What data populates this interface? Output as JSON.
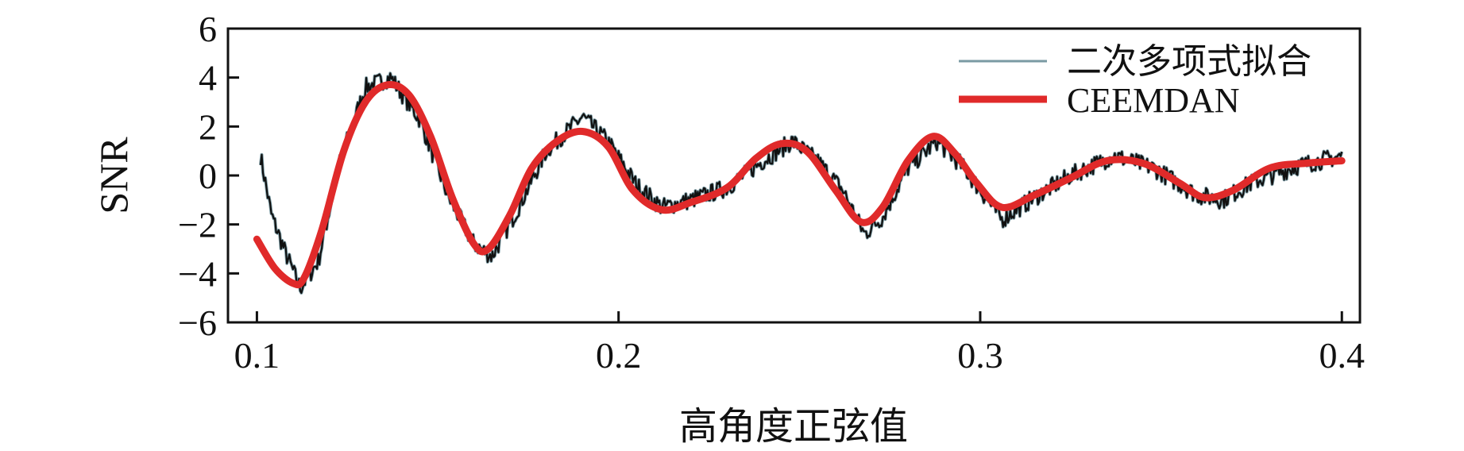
{
  "chart_data": {
    "type": "line",
    "xlabel": "高角度正弦值",
    "ylabel": "SNR",
    "xlim": [
      0.092,
      0.405
    ],
    "ylim": [
      -6,
      6
    ],
    "x_ticks": [
      "0.1",
      "0.2",
      "0.3",
      "0.4"
    ],
    "y_ticks": [
      "−6",
      "−4",
      "−2",
      "0",
      "2",
      "4",
      "6"
    ],
    "grid": false,
    "legend_position": "top-right",
    "series": [
      {
        "name": "二次多项式拟合",
        "color": "#111111",
        "highlight_color": "#7a9aa3",
        "style": "noisy",
        "x": [
          0.101,
          0.104,
          0.108,
          0.112,
          0.117,
          0.123,
          0.13,
          0.137,
          0.145,
          0.153,
          0.16,
          0.165,
          0.172,
          0.18,
          0.19,
          0.197,
          0.205,
          0.212,
          0.22,
          0.23,
          0.24,
          0.248,
          0.255,
          0.262,
          0.268,
          0.273,
          0.28,
          0.288,
          0.295,
          0.3,
          0.306,
          0.315,
          0.325,
          0.337,
          0.348,
          0.36,
          0.367,
          0.375,
          0.388,
          0.4
        ],
        "values": [
          0.8,
          -1.6,
          -3.2,
          -4.6,
          -3.5,
          0.6,
          3.6,
          4.0,
          2.3,
          -0.9,
          -2.8,
          -3.3,
          -1.4,
          1.0,
          2.4,
          1.4,
          -0.4,
          -1.3,
          -1.0,
          -0.5,
          0.6,
          1.4,
          0.6,
          -0.6,
          -2.4,
          -1.7,
          0.3,
          1.4,
          0.4,
          -0.6,
          -1.8,
          -0.9,
          0.0,
          0.8,
          0.3,
          -0.8,
          -1.0,
          -0.3,
          0.4,
          0.8
        ]
      },
      {
        "name": "CEEMDAN",
        "color": "#e02a2a",
        "style": "smooth",
        "x": [
          0.1,
          0.105,
          0.11,
          0.113,
          0.118,
          0.124,
          0.13,
          0.136,
          0.142,
          0.148,
          0.154,
          0.16,
          0.164,
          0.17,
          0.176,
          0.183,
          0.19,
          0.197,
          0.204,
          0.212,
          0.22,
          0.23,
          0.238,
          0.245,
          0.252,
          0.26,
          0.267,
          0.273,
          0.28,
          0.287,
          0.293,
          0.299,
          0.306,
          0.315,
          0.325,
          0.335,
          0.345,
          0.355,
          0.362,
          0.37,
          0.38,
          0.39,
          0.4
        ],
        "values": [
          -2.6,
          -3.8,
          -4.4,
          -4.2,
          -2.2,
          1.0,
          3.0,
          3.7,
          3.3,
          1.6,
          -0.9,
          -2.8,
          -3.0,
          -1.6,
          0.3,
          1.4,
          1.8,
          1.2,
          -0.6,
          -1.4,
          -1.1,
          -0.5,
          0.7,
          1.3,
          1.0,
          -0.6,
          -1.9,
          -1.3,
          0.6,
          1.6,
          0.9,
          -0.3,
          -1.3,
          -0.8,
          -0.1,
          0.6,
          0.5,
          -0.3,
          -0.9,
          -0.6,
          0.3,
          0.5,
          0.6
        ]
      }
    ]
  }
}
